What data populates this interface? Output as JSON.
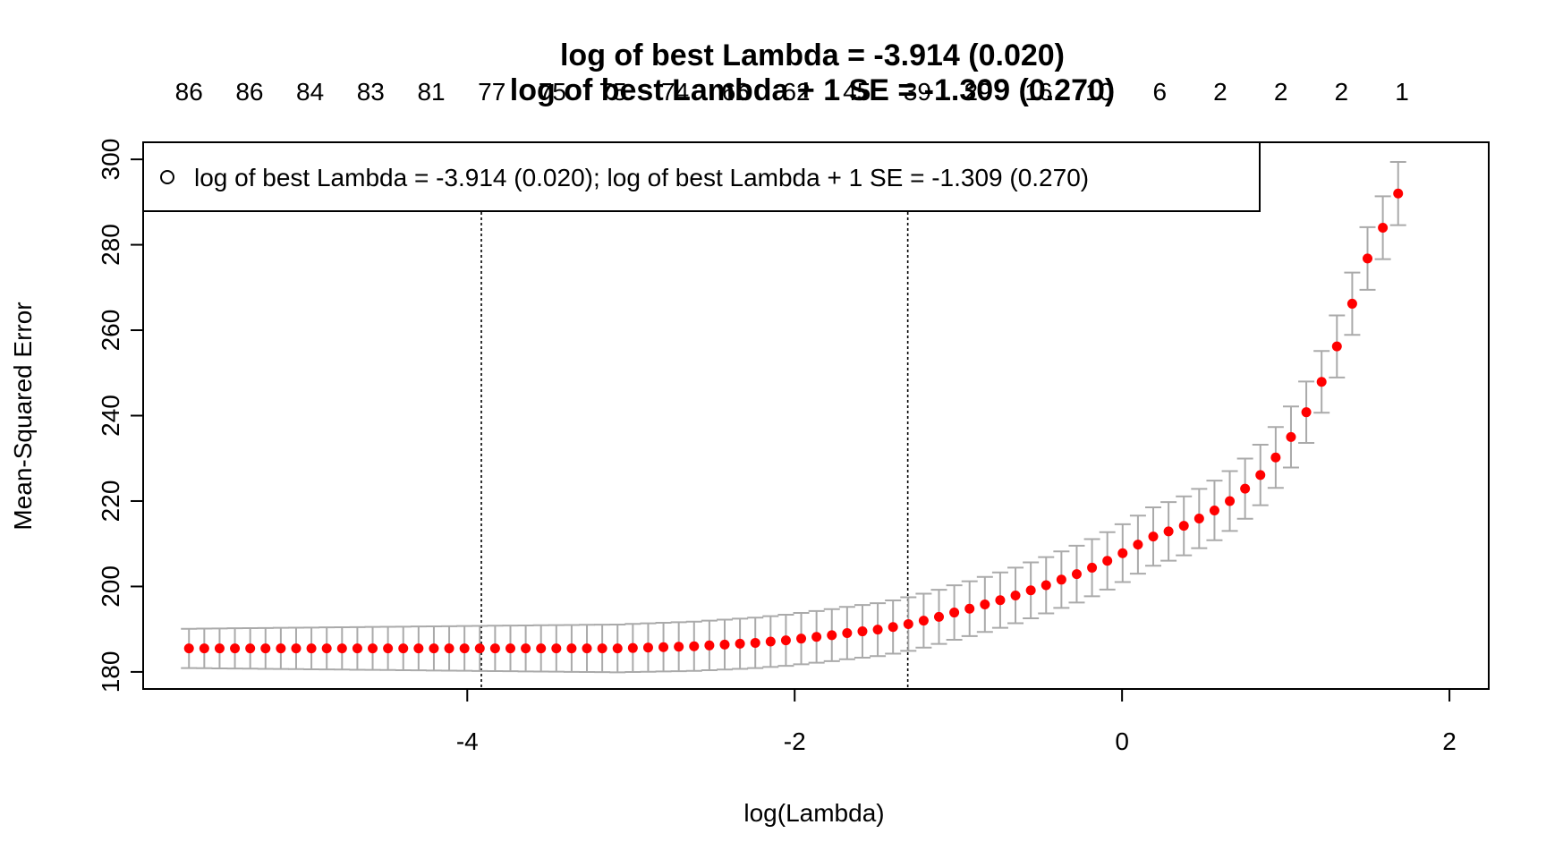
{
  "chart_data": {
    "type": "scatter",
    "title_line1": "log of best Lambda = -3.914  (0.020)",
    "title_line2": "log of best Lambda + 1 SE = -1.309 (0.270)",
    "xlabel": "log(Lambda)",
    "ylabel": "Mean-Squared Error",
    "xlim": [
      -5.98,
      2.24
    ],
    "ylim": [
      176,
      304
    ],
    "x_ticks": [
      -4,
      -2,
      0,
      2
    ],
    "y_ticks": [
      180,
      200,
      220,
      240,
      260,
      280,
      300
    ],
    "top_axis": {
      "x": [
        -5.7,
        -5.33,
        -4.96,
        -4.59,
        -4.22,
        -3.85,
        -3.48,
        -3.11,
        -2.73,
        -2.36,
        -1.99,
        -1.62,
        -1.25,
        -0.88,
        -0.51,
        -0.14,
        0.23,
        0.6,
        0.97,
        1.34,
        1.71
      ],
      "labels": [
        "86",
        "86",
        "84",
        "83",
        "81",
        "77",
        "75",
        "75",
        "74",
        "66",
        "62",
        "45",
        "39",
        "29",
        "16",
        "10",
        "6",
        "2",
        "2",
        "2",
        "1"
      ]
    },
    "vlines": [
      -3.914,
      -1.309
    ],
    "legend": {
      "position": "top-left",
      "text": "log of best Lambda = -3.914  (0.020); log of best Lambda + 1 SE = -1.309 (0.270)"
    },
    "colors": {
      "point": "#ff0000",
      "errorbar": "#aaaaaa",
      "vline": "#000000"
    },
    "se_narrow": 4.6,
    "se_wide": 7.4,
    "series": [
      {
        "x_start": -5.7,
        "x_step": 0.0935,
        "values": [
          185.5,
          185.5,
          185.5,
          185.5,
          185.5,
          185.5,
          185.5,
          185.5,
          185.5,
          185.5,
          185.5,
          185.5,
          185.5,
          185.5,
          185.5,
          185.5,
          185.5,
          185.5,
          185.5,
          185.5,
          185.5,
          185.5,
          185.5,
          185.5,
          185.5,
          185.5,
          185.5,
          185.5,
          185.5,
          185.6,
          185.7,
          185.8,
          185.9,
          186.0,
          186.2,
          186.4,
          186.6,
          186.8,
          187.1,
          187.4,
          187.8,
          188.2,
          188.6,
          189.1,
          189.5,
          189.9,
          190.5,
          191.2,
          192.0,
          192.9,
          193.9,
          194.8,
          195.8,
          196.8,
          197.9,
          199.1,
          200.3,
          201.6,
          202.9,
          204.4,
          206.0,
          207.8,
          209.8,
          211.7,
          212.9,
          214.2,
          215.9,
          217.8,
          220.0,
          222.9,
          226.1,
          230.2,
          235.0,
          240.8,
          247.9,
          256.2,
          266.2,
          276.8,
          284.0,
          292.0
        ]
      }
    ]
  }
}
